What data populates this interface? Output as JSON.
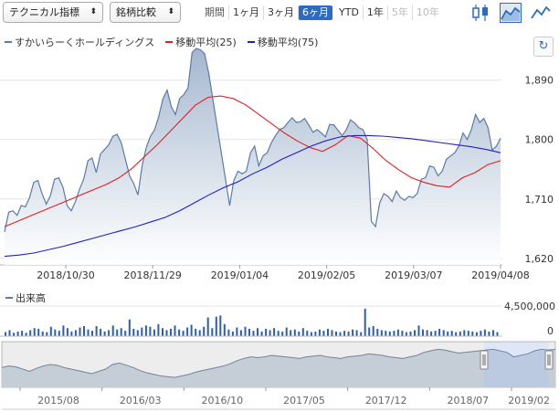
{
  "toolbar": {
    "indicator_select": "テクニカル指標",
    "compare_select": "銘柄比較",
    "period_label": "期間",
    "periods": [
      {
        "label": "1ヶ月",
        "state": "normal"
      },
      {
        "label": "3ヶ月",
        "state": "normal"
      },
      {
        "label": "6ヶ月",
        "state": "active"
      },
      {
        "label": "YTD",
        "state": "normal"
      },
      {
        "label": "1年",
        "state": "normal"
      },
      {
        "label": "5年",
        "state": "disabled"
      },
      {
        "label": "10年",
        "state": "disabled"
      }
    ],
    "icons": [
      "candlestick-chart-icon",
      "area-chart-icon",
      "line-chart-icon"
    ]
  },
  "legend": [
    {
      "label": "すかいらーくホールディングス",
      "color": "#5b7ba6"
    },
    {
      "label": "移動平均(25)",
      "color": "#e02020"
    },
    {
      "label": "移動平均(75)",
      "color": "#2020c8"
    }
  ],
  "volume_label": "出来高",
  "chart_data": {
    "type": "area",
    "x_ticks": [
      "2018/10/30",
      "2018/11/29",
      "2019/01/04",
      "2019/02/05",
      "2019/03/07",
      "2019/04/08"
    ],
    "y_ticks": [
      1620,
      1710,
      1800,
      1890
    ],
    "ylim": [
      1610,
      1945
    ],
    "series": [
      {
        "name": "すかいらーくホールディングス",
        "type": "area",
        "color": "#5b7ba6",
        "values": [
          1660,
          1690,
          1692,
          1685,
          1700,
          1698,
          1712,
          1735,
          1738,
          1718,
          1702,
          1715,
          1740,
          1742,
          1728,
          1700,
          1692,
          1706,
          1725,
          1740,
          1768,
          1772,
          1750,
          1778,
          1785,
          1792,
          1805,
          1808,
          1795,
          1770,
          1745,
          1733,
          1716,
          1760,
          1788,
          1805,
          1815,
          1835,
          1862,
          1875,
          1850,
          1838,
          1862,
          1868,
          1878,
          1932,
          1938,
          1936,
          1930,
          1900,
          1860,
          1820,
          1780,
          1740,
          1700,
          1738,
          1752,
          1748,
          1752,
          1780,
          1790,
          1760,
          1775,
          1780,
          1795,
          1806,
          1815,
          1818,
          1826,
          1833,
          1826,
          1827,
          1832,
          1822,
          1811,
          1815,
          1810,
          1804,
          1823,
          1822,
          1814,
          1806,
          1815,
          1830,
          1825,
          1818,
          1815,
          1800,
          1676,
          1668,
          1704,
          1718,
          1714,
          1706,
          1722,
          1712,
          1708,
          1714,
          1712,
          1718,
          1740,
          1742,
          1760,
          1758,
          1745,
          1752,
          1770,
          1775,
          1780,
          1790,
          1810,
          1800,
          1815,
          1838,
          1826,
          1832,
          1818,
          1784,
          1790,
          1802
        ]
      },
      {
        "name": "移動平均(25)",
        "type": "line",
        "color": "#e02020",
        "values": [
          1668,
          1676,
          1684,
          1692,
          1700,
          1708,
          1716,
          1724,
          1732,
          1742,
          1756,
          1774,
          1792,
          1812,
          1832,
          1852,
          1864,
          1866,
          1862,
          1852,
          1838,
          1824,
          1810,
          1798,
          1788,
          1782,
          1792,
          1806,
          1802,
          1786,
          1768,
          1754,
          1742,
          1735,
          1730,
          1728,
          1742,
          1750,
          1762,
          1768
        ]
      },
      {
        "name": "移動平均(75)",
        "type": "line",
        "color": "#2020c8",
        "values": [
          1623,
          1625,
          1628,
          1633,
          1638,
          1644,
          1650,
          1656,
          1662,
          1668,
          1675,
          1682,
          1692,
          1704,
          1716,
          1727,
          1736,
          1748,
          1758,
          1770,
          1780,
          1790,
          1798,
          1804,
          1806,
          1806,
          1805,
          1803,
          1801,
          1798,
          1795,
          1792,
          1789,
          1785,
          1780
        ]
      }
    ],
    "volume": {
      "label": "出来高",
      "y_ticks": [
        "4,500,000",
        "0"
      ],
      "max": 4500000,
      "values": [
        600000,
        900000,
        500000,
        700000,
        800000,
        500000,
        900000,
        1200000,
        1100000,
        700000,
        600000,
        1400000,
        1000000,
        800000,
        1600000,
        1200000,
        700000,
        900000,
        1300000,
        1500000,
        1000000,
        800000,
        1500000,
        1100000,
        700000,
        900000,
        1600000,
        1000000,
        1200000,
        800000,
        2500000,
        1100000,
        900000,
        1300000,
        1600000,
        1400000,
        1000000,
        1800000,
        1200000,
        900000,
        1100000,
        1600000,
        1000000,
        800000,
        1300000,
        1700000,
        1100000,
        900000,
        1400000,
        2800000,
        1200000,
        2900000,
        3100000,
        1800000,
        1000000,
        700000,
        1300000,
        900000,
        1400000,
        1100000,
        800000,
        1200000,
        700000,
        1100000,
        900000,
        1200000,
        800000,
        700000,
        1300000,
        900000,
        1000000,
        700000,
        1200000,
        800000,
        600000,
        700000,
        1000000,
        800000,
        1100000,
        900000,
        700000,
        600000,
        800000,
        700000,
        1000000,
        900000,
        600000,
        4100000,
        1300000,
        1500000,
        1100000,
        900000,
        800000,
        700000,
        800000,
        1000000,
        800000,
        600000,
        700000,
        900000,
        1600000,
        1000000,
        900000,
        700000,
        800000,
        1100000,
        900000,
        700000,
        800000,
        600000,
        700000,
        900000,
        800000,
        700000,
        600000,
        800000,
        1000000,
        700000,
        900000,
        600000
      ]
    },
    "navigator": {
      "x_ticks": [
        "2015/08",
        "2016/03",
        "2016/10",
        "2017/05",
        "2017/12",
        "2018/07",
        "2019/02"
      ],
      "values": [
        1560,
        1580,
        1570,
        1540,
        1510,
        1550,
        1580,
        1600,
        1590,
        1560,
        1540,
        1520,
        1500,
        1480,
        1510,
        1540,
        1600,
        1620,
        1590,
        1560,
        1520,
        1490,
        1470,
        1450,
        1440,
        1430,
        1450,
        1470,
        1500,
        1520,
        1540,
        1560,
        1580,
        1610,
        1650,
        1680,
        1700,
        1690,
        1700,
        1720,
        1710,
        1700,
        1690,
        1680,
        1700,
        1710,
        1720,
        1700,
        1690,
        1680,
        1700,
        1710,
        1720,
        1740,
        1730,
        1720,
        1700,
        1690,
        1680,
        1700,
        1720,
        1760,
        1780,
        1800,
        1790,
        1770,
        1750,
        1760,
        1770,
        1780,
        1790,
        1800,
        1780,
        1760,
        1700,
        1720,
        1740,
        1780,
        1800,
        1790,
        1800
      ]
    }
  }
}
